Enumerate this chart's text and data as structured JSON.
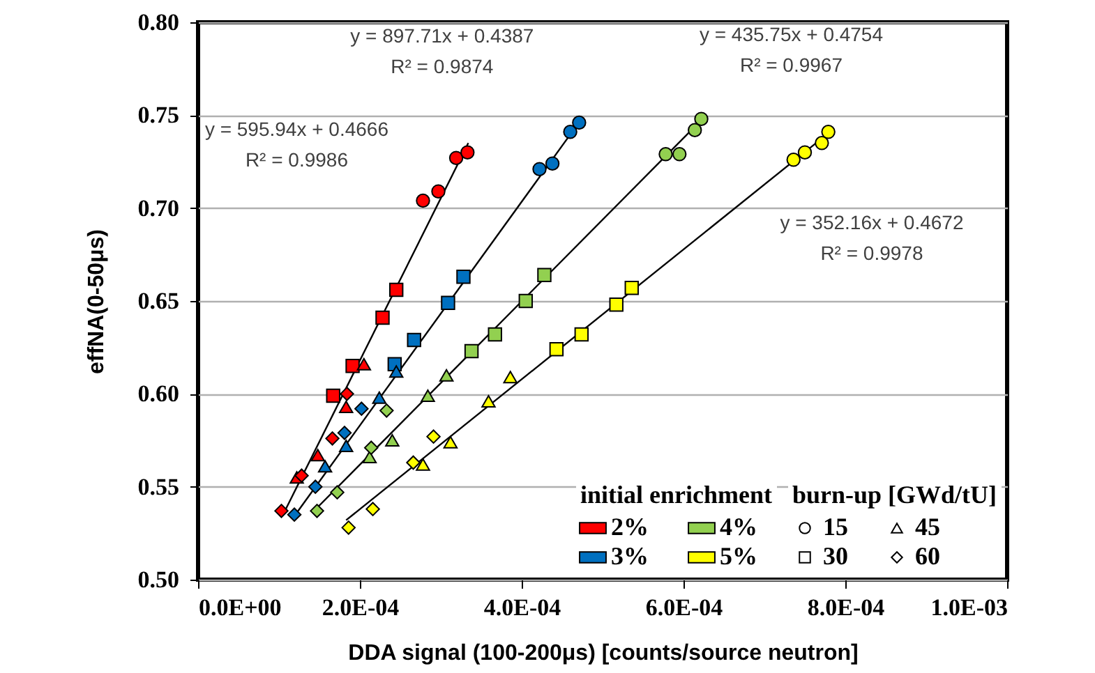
{
  "chart_data": {
    "type": "scatter",
    "xlabel": "DDA signal (100-200μs) [counts/source neutron]",
    "ylabel": "effNA(0-50μs)",
    "xlim": [
      0,
      0.001
    ],
    "xticks": [
      {
        "value": 0,
        "label": "0.0E+00"
      },
      {
        "value": 0.0002,
        "label": "2.0E-04"
      },
      {
        "value": 0.0004,
        "label": "4.0E-04"
      },
      {
        "value": 0.0006,
        "label": "6.0E-04"
      },
      {
        "value": 0.0008,
        "label": "8.0E-04"
      },
      {
        "value": 0.001,
        "label": "1.0E-03"
      }
    ],
    "ylim": [
      0.5,
      0.8
    ],
    "yticks": [
      {
        "value": 0.5,
        "label": "0.50"
      },
      {
        "value": 0.55,
        "label": "0.55"
      },
      {
        "value": 0.6,
        "label": "0.60"
      },
      {
        "value": 0.65,
        "label": "0.65"
      },
      {
        "value": 0.7,
        "label": "0.70"
      },
      {
        "value": 0.75,
        "label": "0.75"
      },
      {
        "value": 0.8,
        "label": "0.80"
      }
    ],
    "grid": "y",
    "legend": "bottom right",
    "legend_title": "initial enrichment",
    "series": [
      {
        "name": "2%",
        "color": "#ff0000",
        "marker": "circle",
        "x": [
          0.000278,
          0.000297,
          0.000319,
          0.000333
        ],
        "values": [
          0.704,
          0.709,
          0.727,
          0.73
        ]
      },
      {
        "color": "#ff0000",
        "marker": "square",
        "x": [
          0.000167,
          0.000191,
          0.000228,
          0.000245
        ],
        "values": [
          0.599,
          0.615,
          0.641,
          0.656
        ]
      },
      {
        "color": "#ff0000",
        "marker": "triangle",
        "x": [
          0.000122,
          0.000148,
          0.000183,
          0.000205
        ],
        "values": [
          0.555,
          0.567,
          0.593,
          0.616
        ]
      },
      {
        "color": "#ff0000",
        "marker": "diamond",
        "x": [
          0.000103,
          0.000128,
          0.000166,
          0.000184
        ],
        "values": [
          0.537,
          0.556,
          0.576,
          0.6
        ]
      },
      {
        "name": "3%",
        "color": "#0070c0",
        "marker": "circle",
        "x": [
          0.000422,
          0.000438,
          0.00046,
          0.000471
        ],
        "values": [
          0.721,
          0.724,
          0.741,
          0.746
        ]
      },
      {
        "color": "#0070c0",
        "marker": "square",
        "x": [
          0.000243,
          0.000267,
          0.000309,
          0.000328
        ],
        "values": [
          0.616,
          0.629,
          0.649,
          0.663
        ]
      },
      {
        "color": "#0070c0",
        "marker": "triangle",
        "x": [
          0.000157,
          0.000183,
          0.000224,
          0.000245
        ],
        "values": [
          0.561,
          0.572,
          0.598,
          0.612
        ]
      },
      {
        "color": "#0070c0",
        "marker": "diamond",
        "x": [
          0.000119,
          0.000145,
          0.000181,
          0.000202
        ],
        "values": [
          0.535,
          0.55,
          0.579,
          0.592
        ]
      },
      {
        "name": "4%",
        "color": "#92d050",
        "marker": "circle",
        "x": [
          0.000578,
          0.000595,
          0.000614,
          0.000622
        ],
        "values": [
          0.729,
          0.729,
          0.742,
          0.748
        ]
      },
      {
        "color": "#92d050",
        "marker": "square",
        "x": [
          0.000338,
          0.000367,
          0.000405,
          0.000428
        ],
        "values": [
          0.623,
          0.632,
          0.65,
          0.664
        ]
      },
      {
        "color": "#92d050",
        "marker": "triangle",
        "x": [
          0.000212,
          0.00024,
          0.000284,
          0.000307
        ],
        "values": [
          0.566,
          0.575,
          0.599,
          0.61
        ]
      },
      {
        "color": "#92d050",
        "marker": "diamond",
        "x": [
          0.000147,
          0.000172,
          0.000214,
          0.000233
        ],
        "values": [
          0.537,
          0.547,
          0.571,
          0.591
        ]
      },
      {
        "name": "5%",
        "color": "#ffff00",
        "marker": "circle",
        "x": [
          0.000736,
          0.00075,
          0.000771,
          0.000779
        ],
        "values": [
          0.726,
          0.73,
          0.735,
          0.741
        ]
      },
      {
        "color": "#ffff00",
        "marker": "square",
        "x": [
          0.000443,
          0.000474,
          0.000517,
          0.000536
        ],
        "values": [
          0.624,
          0.632,
          0.648,
          0.657
        ]
      },
      {
        "color": "#ffff00",
        "marker": "triangle",
        "x": [
          0.000278,
          0.000312,
          0.000359,
          0.000386
        ],
        "values": [
          0.562,
          0.574,
          0.596,
          0.609
        ]
      },
      {
        "color": "#ffff00",
        "marker": "diamond",
        "x": [
          0.000186,
          0.000216,
          0.000266,
          0.000291
        ],
        "values": [
          0.528,
          0.538,
          0.563,
          0.577
        ]
      },
      {
        "type": "line",
        "color": "#000000",
        "x": [
          0.000105,
          0.000334
        ],
        "values": [
          0.535,
          0.735
        ]
      },
      {
        "type": "line",
        "color": "#000000",
        "x": [
          0.000117,
          0.000474
        ],
        "values": [
          0.533,
          0.748
        ]
      },
      {
        "type": "line",
        "color": "#000000",
        "x": [
          0.000141,
          0.000628
        ],
        "values": [
          0.536,
          0.75
        ]
      },
      {
        "type": "line",
        "color": "#000000",
        "x": [
          0.000183,
          0.000781
        ],
        "values": [
          0.532,
          0.741
        ]
      }
    ],
    "annotations": [
      "y = 595.94x + 0.4666\nR² = 0.9986",
      "y = 897.71x + 0.4387\nR² = 0.9874",
      "y = 435.75x + 0.4754\nR² = 0.9967",
      "y = 352.16x + 0.4672\nR² = 0.9978",
      "burn-up [GWd/tU]",
      "15",
      "30",
      "45",
      "60"
    ]
  }
}
